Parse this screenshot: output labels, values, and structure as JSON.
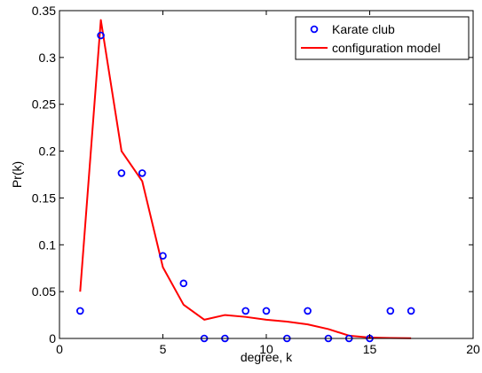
{
  "chart_data": {
    "type": "line",
    "title": "",
    "xlabel": "degree, k",
    "ylabel": "Pr(k)",
    "xlim": [
      0,
      20
    ],
    "ylim": [
      0,
      0.35
    ],
    "x_ticks": [
      0,
      5,
      10,
      15,
      20
    ],
    "x_tick_labels": [
      "0",
      "5",
      "10",
      "15",
      "20"
    ],
    "y_ticks": [
      0,
      0.05,
      0.1,
      0.15,
      0.2,
      0.25,
      0.3,
      0.35
    ],
    "y_tick_labels": [
      "0",
      "0.05",
      "0.1",
      "0.15",
      "0.2",
      "0.25",
      "0.3",
      "0.35"
    ],
    "grid": false,
    "legend_position": "top-right",
    "series": [
      {
        "name": "Karate club",
        "style": "markers",
        "marker": "circle",
        "color": "#0000ff",
        "x": [
          1,
          2,
          3,
          4,
          5,
          6,
          7,
          8,
          9,
          10,
          11,
          12,
          13,
          14,
          15,
          16,
          17
        ],
        "y": [
          0.0294,
          0.3235,
          0.1765,
          0.1765,
          0.0882,
          0.0588,
          0,
          0,
          0.0294,
          0.0294,
          0,
          0.0294,
          0,
          0,
          0,
          0.0294,
          0.0294
        ]
      },
      {
        "name": "configuration model",
        "style": "line",
        "color": "#ff0000",
        "x": [
          1,
          2,
          3,
          4,
          5,
          6,
          7,
          8,
          9,
          10,
          11,
          12,
          13,
          14,
          15,
          16,
          17
        ],
        "y": [
          0.05,
          0.34,
          0.2,
          0.168,
          0.076,
          0.036,
          0.02,
          0.025,
          0.023,
          0.02,
          0.018,
          0.015,
          0.01,
          0.003,
          0.001,
          0.0005,
          0.0002
        ]
      }
    ]
  }
}
